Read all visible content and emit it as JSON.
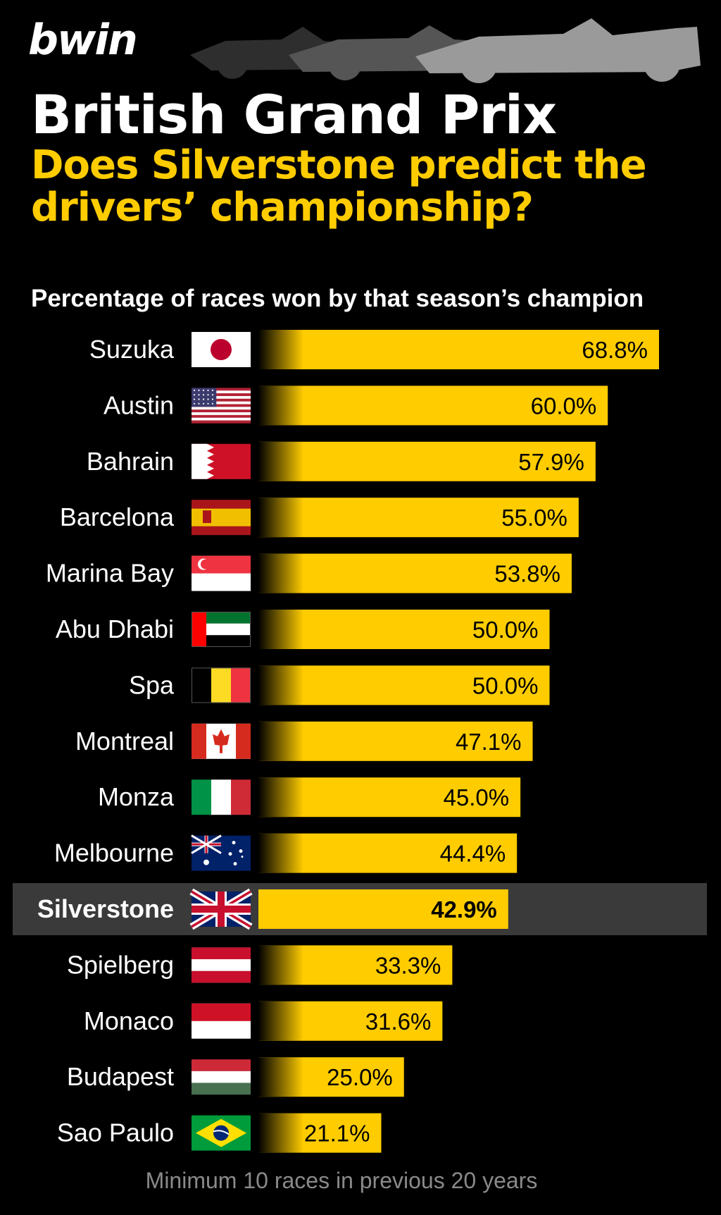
{
  "brand": {
    "logo": "bwin"
  },
  "header": {
    "title": "British Grand Prix",
    "subtitle": "Does Silverstone predict the drivers’ championship?",
    "description": "Percentage of races won by that season’s champion"
  },
  "footnote": "Minimum 10 races in previous 20 years",
  "colors": {
    "bar": "#ffcc00",
    "background": "#000000",
    "highlight_row": "#3a3a3a",
    "footnote": "#8a8a8a"
  },
  "chart_data": {
    "type": "bar",
    "orientation": "horizontal",
    "categories": [
      "Suzuka",
      "Austin",
      "Bahrain",
      "Barcelona",
      "Marina Bay",
      "Abu Dhabi",
      "Spa",
      "Montreal",
      "Monza",
      "Melbourne",
      "Silverstone",
      "Spielberg",
      "Monaco",
      "Budapest",
      "Sao Paulo"
    ],
    "values": [
      68.8,
      60.0,
      57.9,
      55.0,
      53.8,
      50.0,
      50.0,
      47.1,
      45.0,
      44.4,
      42.9,
      33.3,
      31.6,
      25.0,
      21.1
    ],
    "value_labels": [
      "68.8%",
      "60.0%",
      "57.9%",
      "55.0%",
      "53.8%",
      "50.0%",
      "50.0%",
      "47.1%",
      "45.0%",
      "44.4%",
      "42.9%",
      "33.3%",
      "31.6%",
      "25.0%",
      "21.1%"
    ],
    "flags": [
      "japan",
      "usa",
      "bahrain",
      "spain",
      "singapore",
      "uae",
      "belgium",
      "canada",
      "italy",
      "australia",
      "uk",
      "austria",
      "monaco",
      "hungary",
      "brazil"
    ],
    "highlight": "Silverstone",
    "unit": "%",
    "grid": false,
    "legend": "none"
  }
}
